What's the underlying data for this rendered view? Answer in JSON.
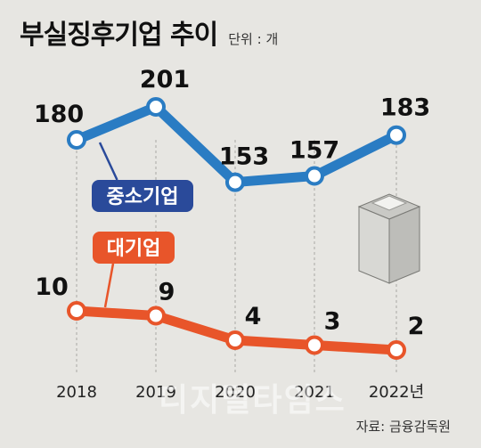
{
  "header": {
    "title": "부실징후기업 추이",
    "unit": "단위 : 개"
  },
  "source": "자료: 금융감독원",
  "watermark": "디지털타임스",
  "colors": {
    "large": "#e8552a",
    "sme": "#2a7cc3",
    "sme_badge": "#2a4a9a",
    "large_badge": "#e8552a",
    "marker_fill": "#ffffff"
  },
  "chart_data": {
    "type": "line",
    "categories": [
      "2018",
      "2019",
      "2020",
      "2021",
      "2022년"
    ],
    "series": [
      {
        "name": "중소기업",
        "values": [
          180,
          201,
          153,
          157,
          183
        ]
      },
      {
        "name": "대기업",
        "values": [
          10,
          9,
          4,
          3,
          2
        ]
      }
    ],
    "legend": "inline-labels",
    "grid": "vertical-dashed"
  }
}
